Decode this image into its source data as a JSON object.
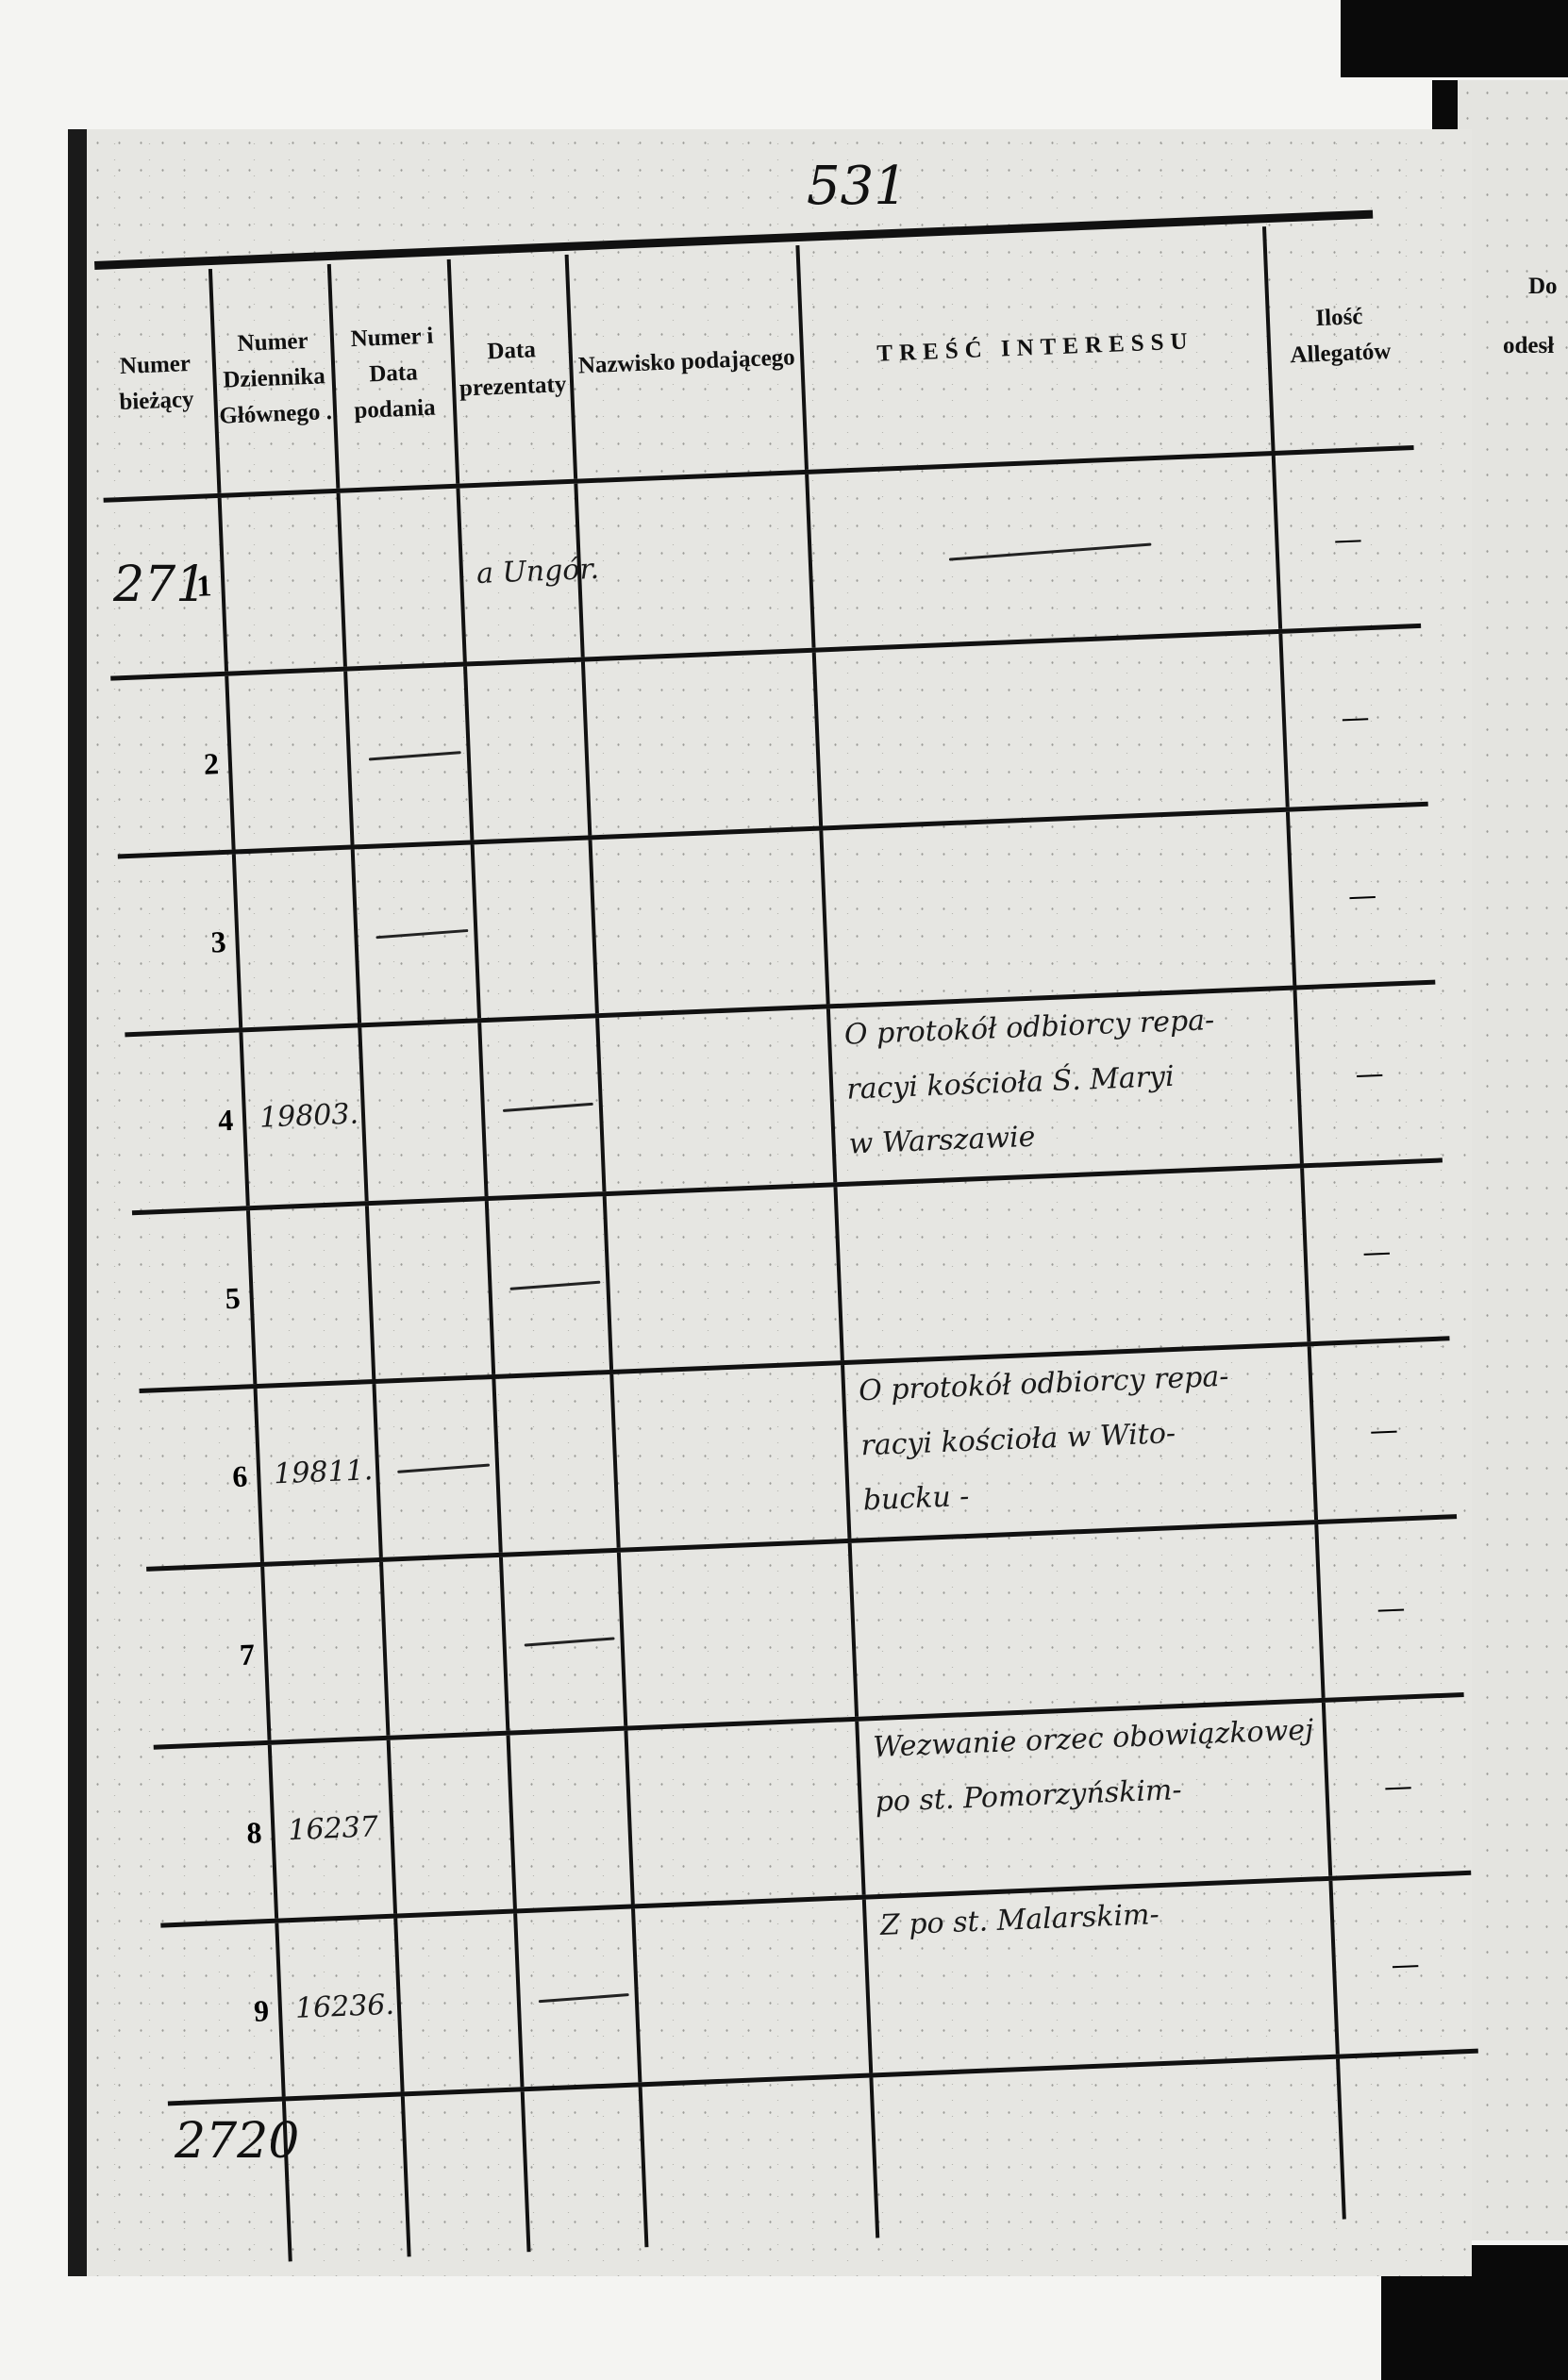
{
  "page_number": "531",
  "header": {
    "columns": [
      "Numer bieżący",
      "Numer Dziennika Głównego .",
      "Numer i Data podania",
      "Data prezentaty",
      "Nazwisko podającego",
      "TREŚĆ INTERESSU",
      "Ilość Allegatów"
    ]
  },
  "rows": [
    {
      "no": "1",
      "dziennik": "",
      "numer_data": "",
      "data_prez": "a Ungór.",
      "nazwisko": "",
      "tresc": [],
      "tresc_dash": true,
      "allegat": "—",
      "dash_col": ""
    },
    {
      "no": "2",
      "dziennik": "",
      "numer_data": "",
      "data_prez": "",
      "nazwisko": "",
      "tresc": [],
      "tresc_dash": false,
      "allegat": "—",
      "dash_col": "numer_data"
    },
    {
      "no": "3",
      "dziennik": "",
      "numer_data": "",
      "data_prez": "",
      "nazwisko": "",
      "tresc": [],
      "tresc_dash": false,
      "allegat": "—",
      "dash_col": "numer_data"
    },
    {
      "no": "4",
      "dziennik": "19803.",
      "numer_data": "",
      "data_prez": "",
      "nazwisko": "",
      "tresc": [
        "O protokół odbiorcy repa-",
        "racyi kościoła Ś. Maryi",
        "w Warszawie"
      ],
      "tresc_dash": false,
      "allegat": "—",
      "dash_col": "data_prez"
    },
    {
      "no": "5",
      "dziennik": "",
      "numer_data": "",
      "data_prez": "",
      "nazwisko": "",
      "tresc": [],
      "tresc_dash": false,
      "allegat": "—",
      "dash_col": "data_prez"
    },
    {
      "no": "6",
      "dziennik": "19811.",
      "numer_data": "",
      "data_prez": "",
      "nazwisko": "",
      "tresc": [
        "O protokół odbiorcy repa-",
        "racyi kościoła w Wito-",
        "bucku -"
      ],
      "tresc_dash": false,
      "allegat": "—",
      "dash_col": "numer_data"
    },
    {
      "no": "7",
      "dziennik": "",
      "numer_data": "",
      "data_prez": "",
      "nazwisko": "",
      "tresc": [],
      "tresc_dash": false,
      "allegat": "—",
      "dash_col": "data_prez"
    },
    {
      "no": "8",
      "dziennik": "16237",
      "numer_data": "",
      "data_prez": "",
      "nazwisko": "",
      "tresc": [
        "Wezwanie orzec obowiązkowej",
        "po st. Pomorzyńskim-"
      ],
      "tresc_dash": false,
      "allegat": "—",
      "dash_col": ""
    },
    {
      "no": "9",
      "dziennik": "16236.",
      "numer_data": "",
      "data_prez": "",
      "nazwisko": "",
      "tresc": [
        "Z po st. Malarskim-"
      ],
      "tresc_dash": false,
      "allegat": "—",
      "dash_col": "data_prez"
    }
  ],
  "margin_notes": {
    "first_entry": "271",
    "last_entry": "2720"
  },
  "right_page": {
    "header_top": "Do",
    "header_bottom": "odesł"
  }
}
